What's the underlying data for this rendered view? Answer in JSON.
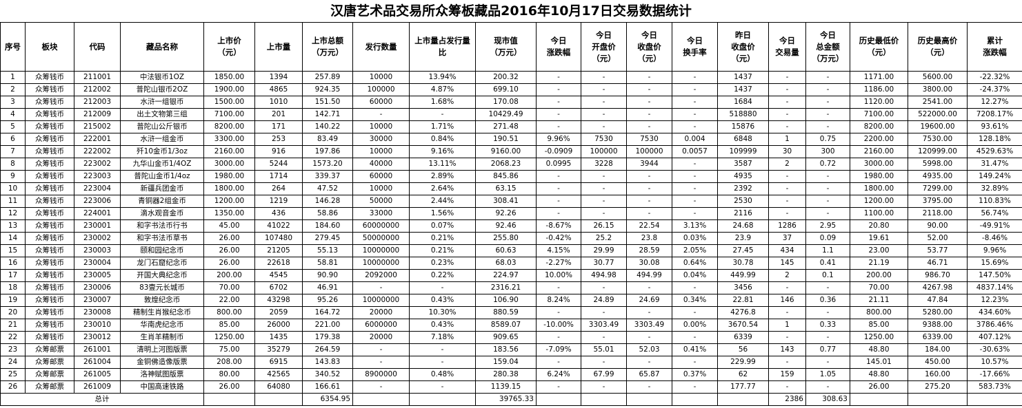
{
  "title": "汉唐艺术品交易所众筹板藏品2016年10月17日交易数据统计",
  "headers": [
    "序号",
    "板块",
    "代码",
    "藏品名称",
    "上市价\n（元）",
    "上市量",
    "上市总额\n（万元）",
    "发行数量",
    "上市量占发行量\n比",
    "现市值\n（万元）",
    "今日\n涨跌幅",
    "今日\n开盘价\n（元）",
    "今日\n收盘价\n（元）",
    "今日\n换手率",
    "昨日\n收盘价\n（元）",
    "今日\n交易量",
    "今日\n总金额\n（万元）",
    "历史最低价\n（元）",
    "历史最高价\n（元）",
    "累计\n涨跌幅"
  ],
  "rows": [
    [
      "1",
      "众筹钱币",
      "211001",
      "中法银币1OZ",
      "1850.00",
      "1394",
      "257.89",
      "10000",
      "13.94%",
      "200.32",
      "-",
      "-",
      "-",
      "-",
      "1437",
      "-",
      "-",
      "1171.00",
      "5600.00",
      "-22.32%"
    ],
    [
      "2",
      "众筹钱币",
      "212002",
      "普陀山银币2OZ",
      "1900.00",
      "4865",
      "924.35",
      "100000",
      "4.87%",
      "699.10",
      "-",
      "-",
      "-",
      "-",
      "1437",
      "-",
      "-",
      "1186.00",
      "3800.00",
      "-24.37%"
    ],
    [
      "3",
      "众筹钱币",
      "212003",
      "水浒一组银币",
      "1500.00",
      "1010",
      "151.50",
      "60000",
      "1.68%",
      "170.08",
      "-",
      "-",
      "-",
      "-",
      "1684",
      "-",
      "-",
      "1120.00",
      "2541.00",
      "12.27%"
    ],
    [
      "4",
      "众筹钱币",
      "212009",
      "出土文物第三组",
      "7100.00",
      "201",
      "142.71",
      "-",
      "-",
      "10429.49",
      "-",
      "-",
      "-",
      "-",
      "518880",
      "-",
      "-",
      "7100.00",
      "522000.00",
      "7208.17%"
    ],
    [
      "5",
      "众筹钱币",
      "215002",
      "普陀山公斤银币",
      "8200.00",
      "171",
      "140.22",
      "10000",
      "1.71%",
      "271.48",
      "-",
      "-",
      "-",
      "-",
      "15876",
      "-",
      "-",
      "8200.00",
      "19600.00",
      "93.61%"
    ],
    [
      "6",
      "众筹钱币",
      "222001",
      "水浒一组金币",
      "3300.00",
      "253",
      "83.49",
      "30000",
      "0.84%",
      "190.51",
      "9.96%",
      "7530",
      "7530",
      "0.004",
      "6848",
      "1",
      "0.75",
      "2200.00",
      "7530.00",
      "128.18%"
    ],
    [
      "7",
      "众筹钱币",
      "222002",
      "歼10金币1/3oz",
      "2160.00",
      "916",
      "197.86",
      "10000",
      "9.16%",
      "9160.00",
      "-0.0909",
      "100000",
      "100000",
      "0.0057",
      "109999",
      "30",
      "300",
      "2160.00",
      "120999.00",
      "4529.63%"
    ],
    [
      "8",
      "众筹钱币",
      "223002",
      "九华山金币1/4OZ",
      "3000.00",
      "5244",
      "1573.20",
      "40000",
      "13.11%",
      "2068.23",
      "0.0995",
      "3228",
      "3944",
      "-",
      "3587",
      "2",
      "0.72",
      "3000.00",
      "5998.00",
      "31.47%"
    ],
    [
      "9",
      "众筹钱币",
      "223003",
      "普陀山金币1/4oz",
      "1980.00",
      "1714",
      "339.37",
      "60000",
      "2.89%",
      "845.86",
      "-",
      "-",
      "-",
      "-",
      "4935",
      "-",
      "-",
      "1980.00",
      "4935.00",
      "149.24%"
    ],
    [
      "10",
      "众筹钱币",
      "223004",
      "新疆兵团金币",
      "1800.00",
      "264",
      "47.52",
      "10000",
      "2.64%",
      "63.15",
      "-",
      "-",
      "-",
      "-",
      "2392",
      "-",
      "-",
      "1800.00",
      "7299.00",
      "32.89%"
    ],
    [
      "11",
      "众筹钱币",
      "223006",
      "青铜器2组金币",
      "1200.00",
      "1219",
      "146.28",
      "50000",
      "2.44%",
      "308.41",
      "-",
      "-",
      "-",
      "-",
      "2530",
      "-",
      "-",
      "1200.00",
      "3795.00",
      "110.83%"
    ],
    [
      "12",
      "众筹钱币",
      "224001",
      "滴水观音金币",
      "1350.00",
      "436",
      "58.86",
      "33000",
      "1.56%",
      "92.26",
      "-",
      "-",
      "-",
      "-",
      "2116",
      "-",
      "-",
      "1100.00",
      "2118.00",
      "56.74%"
    ],
    [
      "13",
      "众筹钱币",
      "230001",
      "和字书法币行书",
      "45.00",
      "41022",
      "184.60",
      "60000000",
      "0.07%",
      "92.46",
      "-8.67%",
      "26.15",
      "22.54",
      "3.13%",
      "24.68",
      "1286",
      "2.95",
      "20.80",
      "90.00",
      "-49.91%"
    ],
    [
      "14",
      "众筹钱币",
      "230002",
      "和字书法币草书",
      "26.00",
      "107480",
      "279.45",
      "50000000",
      "0.21%",
      "255.80",
      "-0.42%",
      "25.2",
      "23.8",
      "0.03%",
      "23.9",
      "37",
      "0.09",
      "19.61",
      "52.00",
      "-8.46%"
    ],
    [
      "15",
      "众筹钱币",
      "230003",
      "颐和园纪念币",
      "26.00",
      "21205",
      "55.13",
      "10000000",
      "0.21%",
      "60.63",
      "4.15%",
      "29.99",
      "28.59",
      "2.05%",
      "27.45",
      "434",
      "1.1",
      "23.00",
      "53.77",
      "9.96%"
    ],
    [
      "16",
      "众筹钱币",
      "230004",
      "龙门石窟纪念币",
      "26.00",
      "22618",
      "58.81",
      "10000000",
      "0.23%",
      "68.03",
      "-2.27%",
      "30.77",
      "30.08",
      "0.64%",
      "30.78",
      "145",
      "0.41",
      "21.19",
      "46.71",
      "15.69%"
    ],
    [
      "17",
      "众筹钱币",
      "230005",
      "开国大典纪念币",
      "200.00",
      "4545",
      "90.90",
      "2092000",
      "0.22%",
      "224.97",
      "10.00%",
      "494.98",
      "494.99",
      "0.04%",
      "449.99",
      "2",
      "0.1",
      "200.00",
      "986.70",
      "147.50%"
    ],
    [
      "18",
      "众筹钱币",
      "230006",
      "83壹元长城币",
      "70.00",
      "6702",
      "46.91",
      "-",
      "-",
      "2316.21",
      "-",
      "-",
      "-",
      "-",
      "3456",
      "-",
      "-",
      "70.00",
      "4267.98",
      "4837.14%"
    ],
    [
      "19",
      "众筹钱币",
      "230007",
      "敦煌纪念币",
      "22.00",
      "43298",
      "95.26",
      "10000000",
      "0.43%",
      "106.90",
      "8.24%",
      "24.89",
      "24.69",
      "0.34%",
      "22.81",
      "146",
      "0.36",
      "21.11",
      "47.84",
      "12.23%"
    ],
    [
      "20",
      "众筹钱币",
      "230008",
      "精制生肖猴纪念币",
      "800.00",
      "2059",
      "164.72",
      "20000",
      "10.30%",
      "880.59",
      "-",
      "-",
      "-",
      "-",
      "4276.8",
      "-",
      "-",
      "800.00",
      "5280.00",
      "434.60%"
    ],
    [
      "21",
      "众筹钱币",
      "230010",
      "华南虎纪念币",
      "85.00",
      "26000",
      "221.00",
      "6000000",
      "0.43%",
      "8589.07",
      "-10.00%",
      "3303.49",
      "3303.49",
      "0.00%",
      "3670.54",
      "1",
      "0.33",
      "85.00",
      "9388.00",
      "3786.46%"
    ],
    [
      "22",
      "众筹钱币",
      "230012",
      "生肖羊精制币",
      "1250.00",
      "1435",
      "179.38",
      "20000",
      "7.18%",
      "909.65",
      "-",
      "-",
      "-",
      "-",
      "6339",
      "-",
      "-",
      "1250.00",
      "6339.00",
      "407.12%"
    ],
    [
      "23",
      "众筹邮票",
      "261001",
      "清明上河图版票",
      "75.00",
      "35279",
      "264.59",
      "-",
      "-",
      "183.56",
      "-7.09%",
      "55.01",
      "52.03",
      "0.41%",
      "56",
      "143",
      "0.77",
      "48.80",
      "184.00",
      "-30.63%"
    ],
    [
      "24",
      "众筹邮票",
      "261004",
      "金铜佛造像版票",
      "208.00",
      "6915",
      "143.83",
      "-",
      "-",
      "159.04",
      "-",
      "-",
      "-",
      "-",
      "229.99",
      "-",
      "-",
      "145.01",
      "450.00",
      "10.57%"
    ],
    [
      "25",
      "众筹邮票",
      "261005",
      "洛神赋图版票",
      "80.00",
      "42565",
      "340.52",
      "8900000",
      "0.48%",
      "280.38",
      "6.24%",
      "67.99",
      "65.87",
      "0.37%",
      "62",
      "159",
      "1.05",
      "48.80",
      "160.00",
      "-17.66%"
    ],
    [
      "26",
      "众筹邮票",
      "261009",
      "中国高速铁路",
      "26.00",
      "64080",
      "166.61",
      "-",
      "-",
      "1139.15",
      "-",
      "-",
      "-",
      "-",
      "177.77",
      "-",
      "-",
      "26.00",
      "275.20",
      "583.73%"
    ]
  ],
  "total": {
    "label": "总计",
    "listing_total": "6354.95",
    "market_value": "39765.33",
    "volume": "2386",
    "amount": "308.63"
  }
}
